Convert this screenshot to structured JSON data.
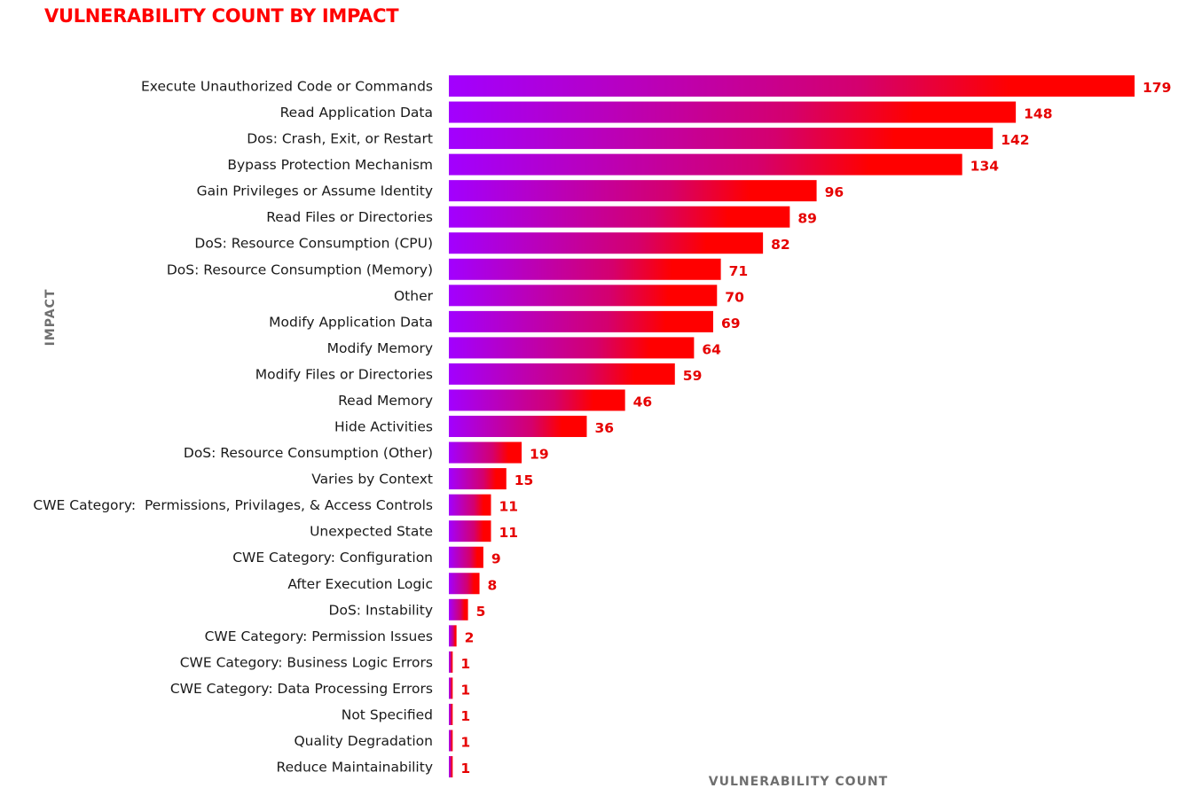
{
  "colors": {
    "title": "#ff0000",
    "bar_start": "#a200ff",
    "bar_end": "#ff0000",
    "value_label": "#e60000",
    "axis_title": "#6f6f6f",
    "category_label": "#1a1a1a"
  },
  "chart_data": {
    "type": "bar",
    "orientation": "horizontal",
    "title": "VULNERABILITY COUNT BY IMPACT",
    "xlabel": "VULNERABILITY COUNT",
    "ylabel": "IMPACT",
    "xlim": [
      0,
      179
    ],
    "grid": false,
    "legend": "none",
    "categories": [
      "Execute Unauthorized Code or Commands",
      "Read Application Data",
      "Dos: Crash, Exit, or Restart",
      "Bypass Protection Mechanism",
      "Gain Privileges or Assume Identity",
      "Read Files or Directories",
      "DoS: Resource Consumption (CPU)",
      "DoS: Resource Consumption (Memory)",
      "Other",
      "Modify Application Data",
      "Modify Memory",
      "Modify Files or Directories",
      "Read Memory",
      "Hide Activities",
      "DoS: Resource Consumption (Other)",
      "Varies by Context",
      "CWE Category:  Permissions, Privilages, & Access Controls",
      "Unexpected State",
      "CWE Category: Configuration",
      "After Execution Logic",
      "DoS: Instability",
      "CWE Category: Permission Issues",
      "CWE Category: Business Logic Errors",
      "CWE Category: Data Processing Errors",
      "Not Specified",
      "Quality Degradation",
      "Reduce Maintainability"
    ],
    "values": [
      179,
      148,
      142,
      134,
      96,
      89,
      82,
      71,
      70,
      69,
      64,
      59,
      46,
      36,
      19,
      15,
      11,
      11,
      9,
      8,
      5,
      2,
      1,
      1,
      1,
      1,
      1
    ]
  }
}
